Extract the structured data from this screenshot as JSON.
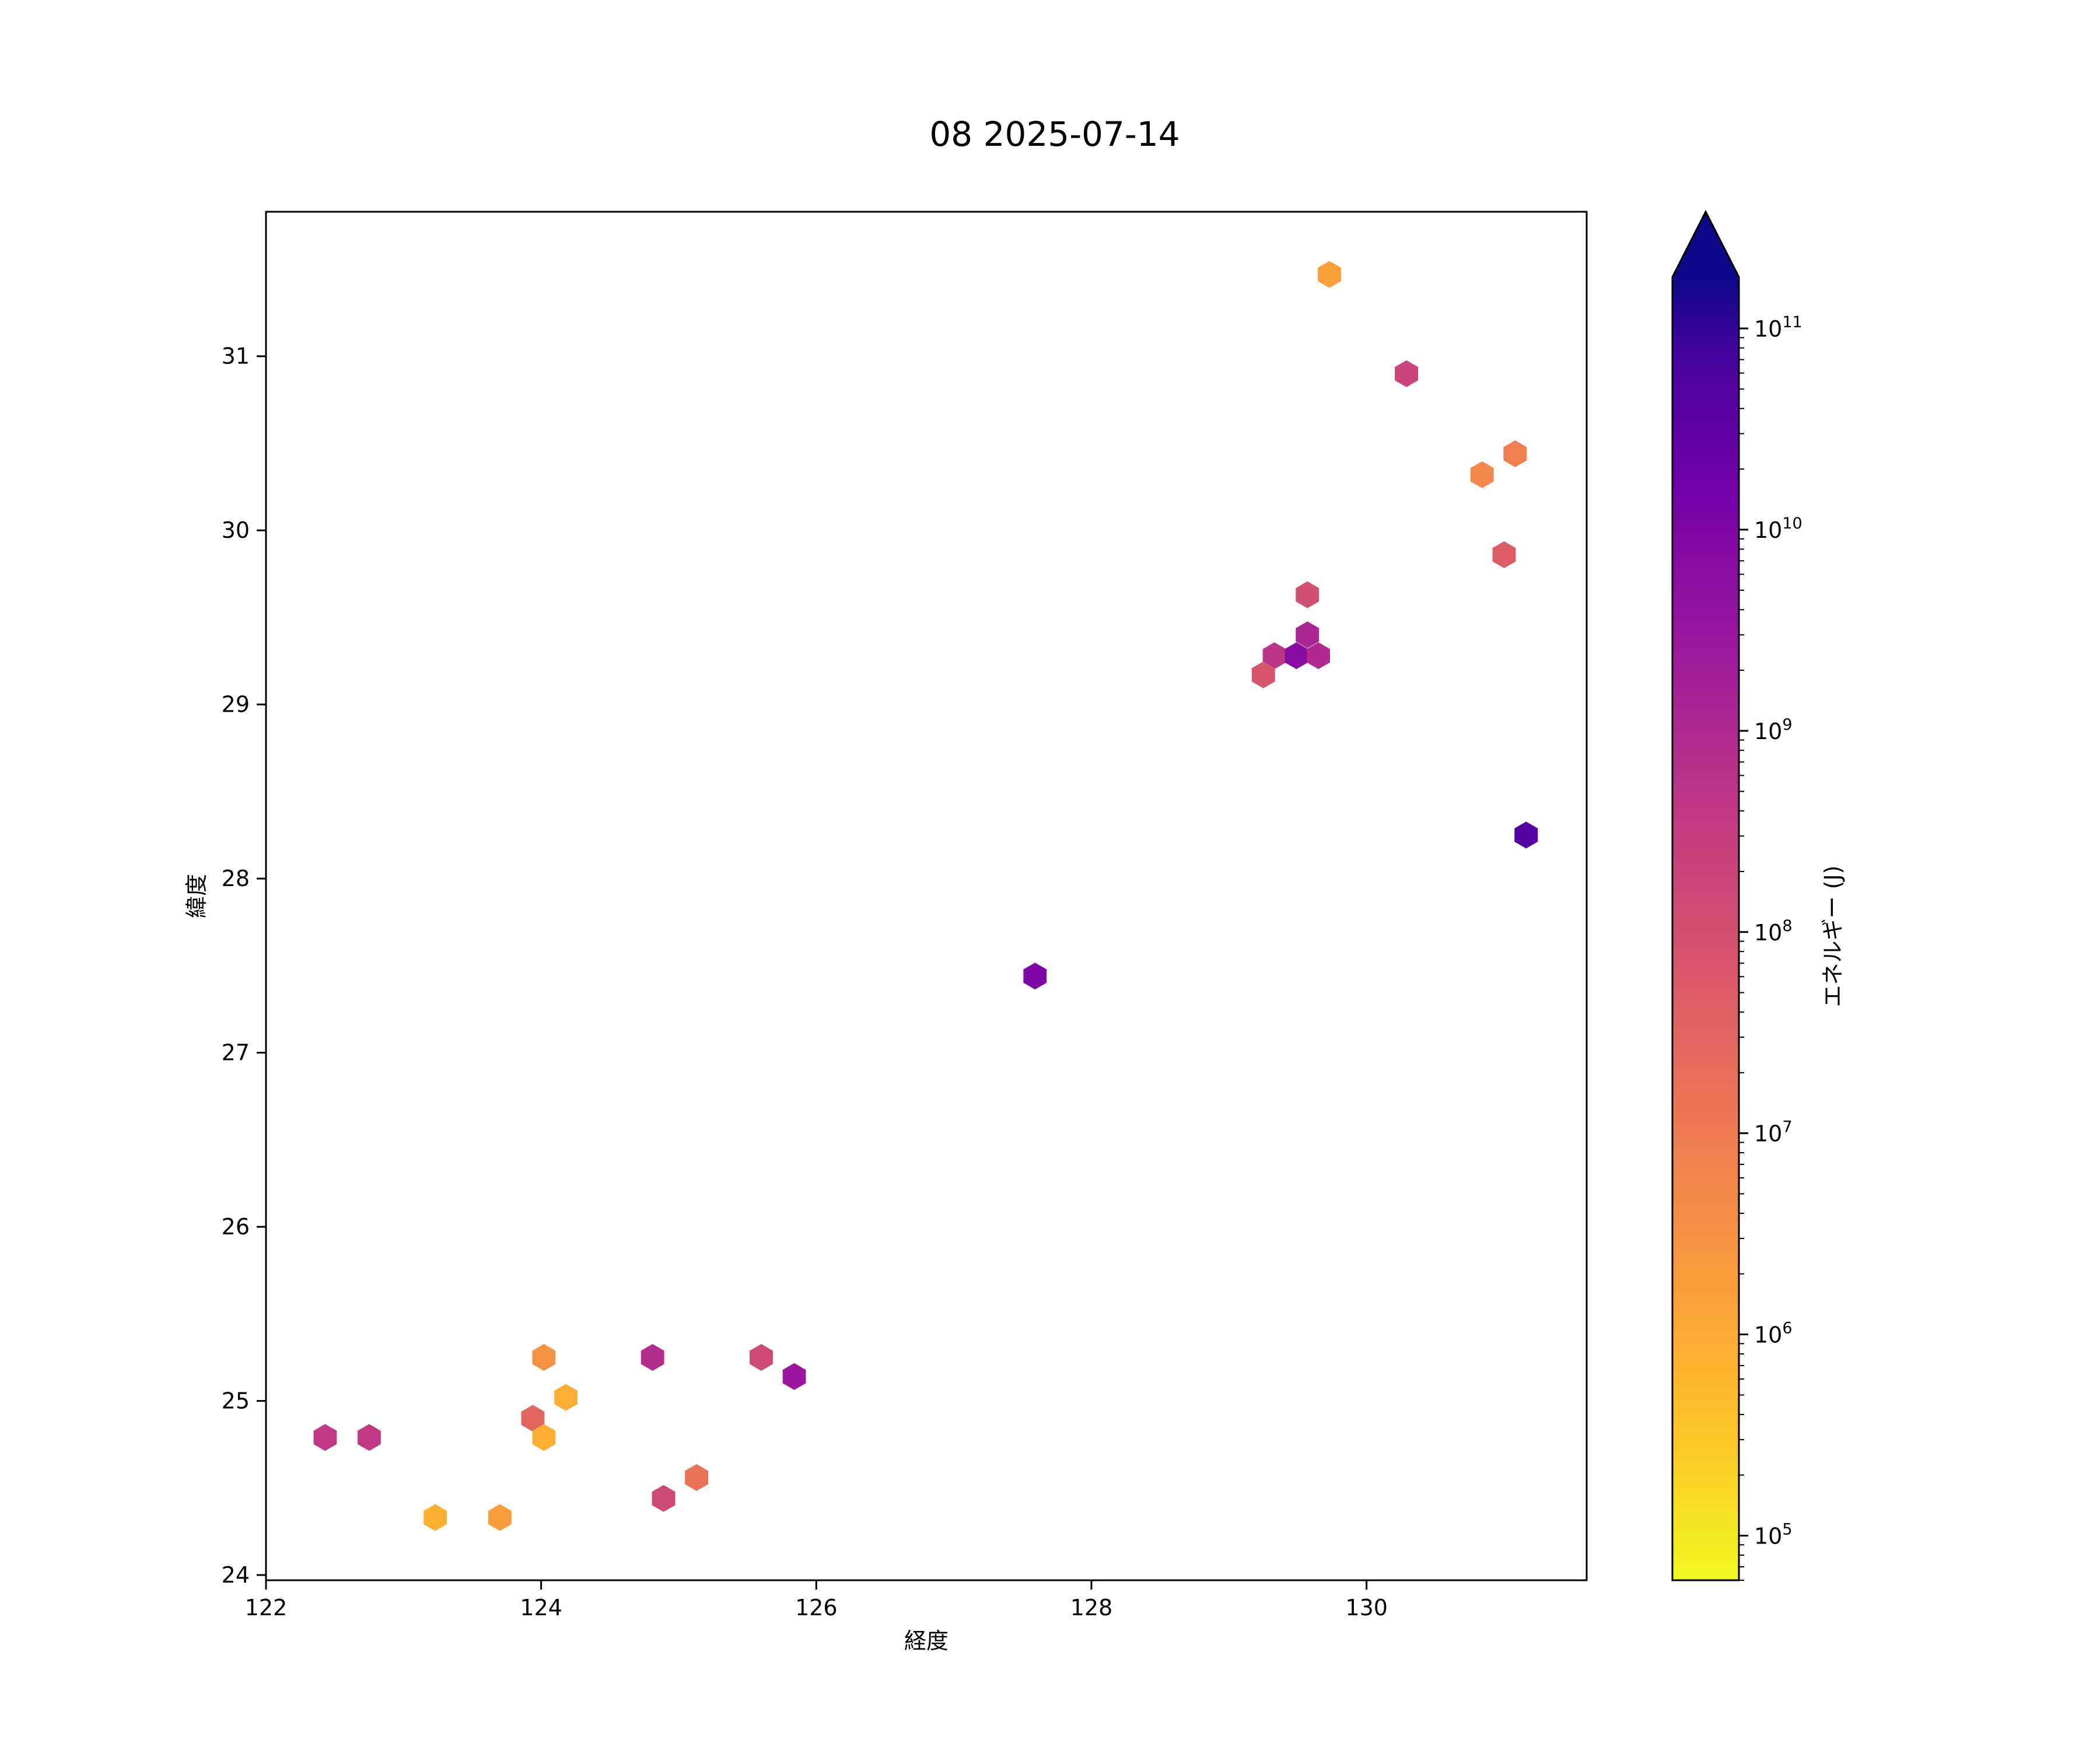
{
  "chart_data": {
    "type": "hexbin",
    "title": "08 2025-07-14",
    "xlabel": "経度",
    "ylabel": "緯度",
    "xlim": [
      122.0,
      131.6
    ],
    "ylim": [
      23.97,
      31.83
    ],
    "x_ticks": [
      122,
      124,
      126,
      128,
      130
    ],
    "y_ticks": [
      24,
      25,
      26,
      27,
      28,
      29,
      30,
      31
    ],
    "colorbar": {
      "label": "エネルギー (J)",
      "scale": "log",
      "colormap": "plasma_r",
      "range": [
        60000,
        180000000000
      ],
      "extend": "max",
      "ticks": [
        {
          "base": "10",
          "exp": "5",
          "value": 100000
        },
        {
          "base": "10",
          "exp": "6",
          "value": 1000000
        },
        {
          "base": "10",
          "exp": "7",
          "value": 10000000
        },
        {
          "base": "10",
          "exp": "8",
          "value": 100000000
        },
        {
          "base": "10",
          "exp": "9",
          "value": 1000000000
        },
        {
          "base": "10",
          "exp": "10",
          "value": 10000000000
        },
        {
          "base": "10",
          "exp": "11",
          "value": 100000000000
        }
      ]
    },
    "points": [
      {
        "x": 129.73,
        "y": 31.47,
        "energy": 1500000
      },
      {
        "x": 130.29,
        "y": 30.9,
        "energy": 200000000
      },
      {
        "x": 131.08,
        "y": 30.44,
        "energy": 8000000
      },
      {
        "x": 130.84,
        "y": 30.32,
        "energy": 5000000
      },
      {
        "x": 131.0,
        "y": 29.86,
        "energy": 50000000
      },
      {
        "x": 129.57,
        "y": 29.63,
        "energy": 100000000
      },
      {
        "x": 129.57,
        "y": 29.4,
        "energy": 1200000000
      },
      {
        "x": 129.33,
        "y": 29.28,
        "energy": 500000000
      },
      {
        "x": 129.49,
        "y": 29.28,
        "energy": 7000000000
      },
      {
        "x": 129.65,
        "y": 29.28,
        "energy": 1000000000
      },
      {
        "x": 129.25,
        "y": 29.17,
        "energy": 70000000
      },
      {
        "x": 131.16,
        "y": 28.25,
        "energy": 50000000000
      },
      {
        "x": 127.59,
        "y": 27.44,
        "energy": 10000000000
      },
      {
        "x": 124.02,
        "y": 25.25,
        "energy": 3000000
      },
      {
        "x": 124.81,
        "y": 25.25,
        "energy": 800000000
      },
      {
        "x": 125.6,
        "y": 25.25,
        "energy": 150000000
      },
      {
        "x": 125.84,
        "y": 25.14,
        "energy": 3000000000
      },
      {
        "x": 124.18,
        "y": 25.02,
        "energy": 900000
      },
      {
        "x": 123.94,
        "y": 24.9,
        "energy": 30000000
      },
      {
        "x": 122.43,
        "y": 24.79,
        "energy": 400000000
      },
      {
        "x": 122.75,
        "y": 24.79,
        "energy": 400000000
      },
      {
        "x": 124.02,
        "y": 24.79,
        "energy": 900000
      },
      {
        "x": 125.13,
        "y": 24.56,
        "energy": 15000000
      },
      {
        "x": 124.89,
        "y": 24.44,
        "energy": 150000000
      },
      {
        "x": 123.23,
        "y": 24.33,
        "energy": 800000
      },
      {
        "x": 123.7,
        "y": 24.33,
        "energy": 1800000
      }
    ]
  }
}
